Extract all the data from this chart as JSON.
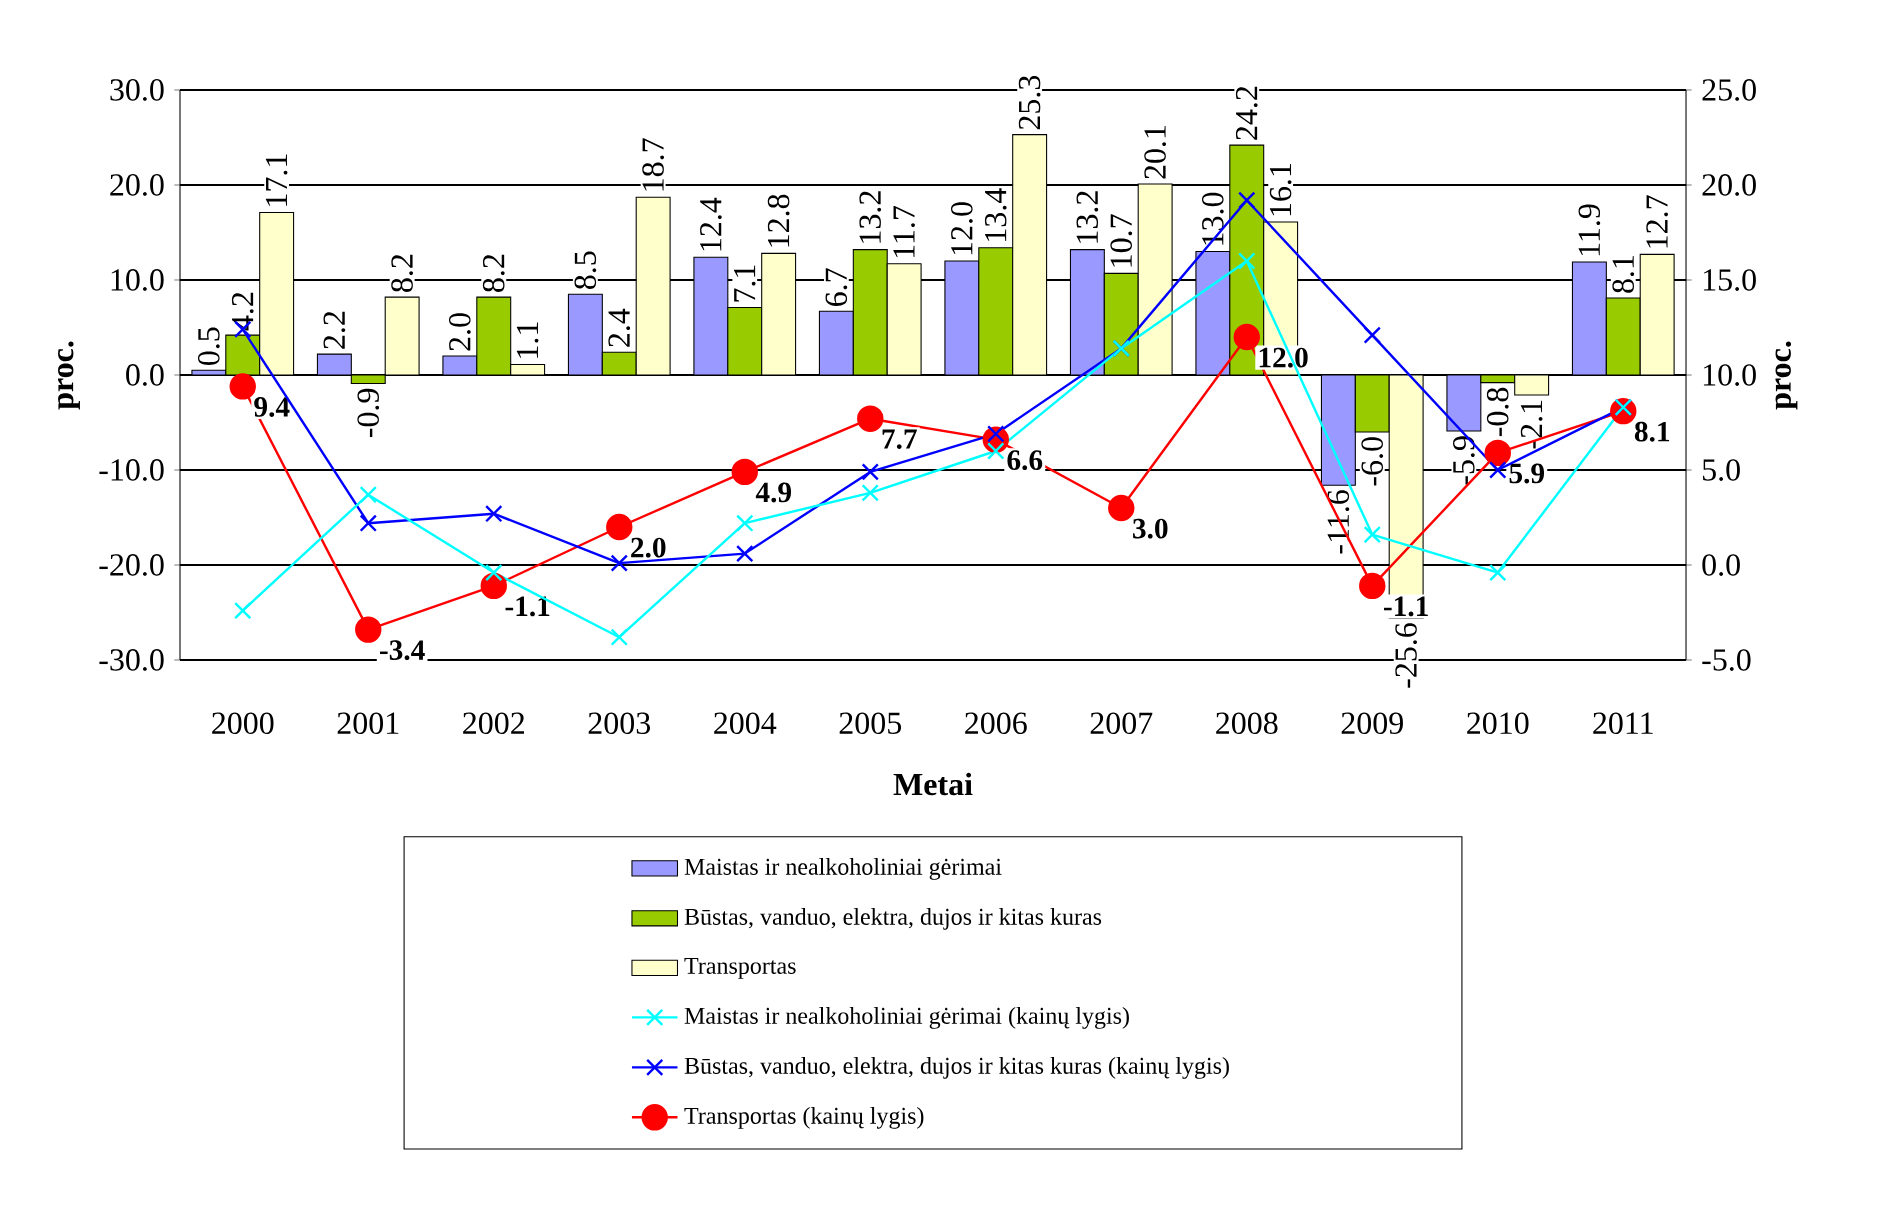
{
  "chart_data": {
    "type": "bar",
    "xlabel": "Metai",
    "ylabel": "proc.",
    "y2label": "proc.",
    "categories": [
      "2000",
      "2001",
      "2002",
      "2003",
      "2004",
      "2005",
      "2006",
      "2007",
      "2008",
      "2009",
      "2010",
      "2011"
    ],
    "ylim": [
      -30,
      30
    ],
    "yticks": [
      {
        "value": -30,
        "label": "-30.0"
      },
      {
        "value": -20,
        "label": "-20.0"
      },
      {
        "value": -10,
        "label": "-10.0"
      },
      {
        "value": 0,
        "label": "0.0"
      },
      {
        "value": 10,
        "label": "10.0"
      },
      {
        "value": 20,
        "label": "20.0"
      },
      {
        "value": 30,
        "label": "30.0"
      }
    ],
    "y2lim": [
      -5,
      25
    ],
    "y2ticks": [
      {
        "value": -5,
        "label": "-5.0"
      },
      {
        "value": 0,
        "label": "0.0"
      },
      {
        "value": 5,
        "label": "5.0"
      },
      {
        "value": 10,
        "label": "10.0"
      },
      {
        "value": 15,
        "label": "15.0"
      },
      {
        "value": 20,
        "label": "20.0"
      },
      {
        "value": 25,
        "label": "25.0"
      }
    ],
    "grid": "y",
    "legend": "bottom",
    "series": [
      {
        "name": "Maistas ir nealkoholiniai gėrimai",
        "color": "#9999ff",
        "values": [
          0.5,
          2.2,
          2.0,
          8.5,
          12.4,
          6.7,
          12.0,
          13.2,
          13.0,
          -11.6,
          -5.9,
          11.9
        ],
        "value_labels": [
          "0.5",
          "2.2",
          "2.0",
          "8.5",
          "12.4",
          "6.7",
          "12.0",
          "13.2",
          "13.0",
          "-11.6",
          "-5.9",
          "11.9"
        ]
      },
      {
        "name": "Būstas, vanduo, elektra, dujos ir kitas kuras",
        "color": "#99cc00",
        "values": [
          4.2,
          -0.9,
          8.2,
          2.4,
          7.1,
          13.2,
          13.4,
          10.7,
          24.2,
          -6.0,
          -0.8,
          8.1
        ],
        "value_labels": [
          "4.2",
          "-0.9",
          "8.2",
          "2.4",
          "7.1",
          "13.2",
          "13.4",
          "10.7",
          "24.2",
          "-6.0",
          "-0.8",
          "8.1"
        ]
      },
      {
        "name": "Transportas",
        "color": "#ffffcc",
        "values": [
          17.1,
          8.2,
          1.1,
          18.7,
          12.8,
          11.7,
          25.3,
          20.1,
          16.1,
          -25.6,
          -2.1,
          12.7
        ],
        "value_labels": [
          "17.1",
          "8.2",
          "1.1",
          "18.7",
          "12.8",
          "11.7",
          "25.3",
          "20.1",
          "16.1",
          "-25.6",
          "-2.1",
          "12.7"
        ]
      },
      {
        "name": "Maistas ir nealkoholiniai gėrimai (kainų lygis)",
        "type": "line",
        "axis": "y2",
        "marker": "cross",
        "color": "#00ffff",
        "values": [
          -2.4,
          3.7,
          -0.4,
          -3.8,
          2.2,
          3.8,
          6.0,
          11.4,
          16.0,
          1.6,
          -0.4,
          8.3
        ]
      },
      {
        "name": "Būstas, vanduo, elektra, dujos ir kitas kuras (kainų lygis)",
        "type": "line",
        "axis": "y2",
        "marker": "cross",
        "color": "#0000ff",
        "values": [
          12.4,
          2.2,
          2.7,
          0.1,
          0.6,
          4.9,
          6.9,
          11.4,
          19.2,
          12.1,
          5.0,
          8.3
        ]
      },
      {
        "name": "Transportas (kainų lygis)",
        "type": "line",
        "axis": "y2",
        "marker": "circle",
        "color": "#ff0000",
        "values": [
          9.4,
          -3.4,
          -1.1,
          2.0,
          4.9,
          7.7,
          6.6,
          3.0,
          12.0,
          -1.1,
          5.9,
          8.1
        ],
        "value_labels": [
          "9.4",
          "-3.4",
          "-1.1",
          "2.0",
          "4.9",
          "7.7",
          "6.6",
          "3.0",
          "12.0",
          "-1.1",
          "5.9",
          "8.1"
        ]
      }
    ]
  }
}
